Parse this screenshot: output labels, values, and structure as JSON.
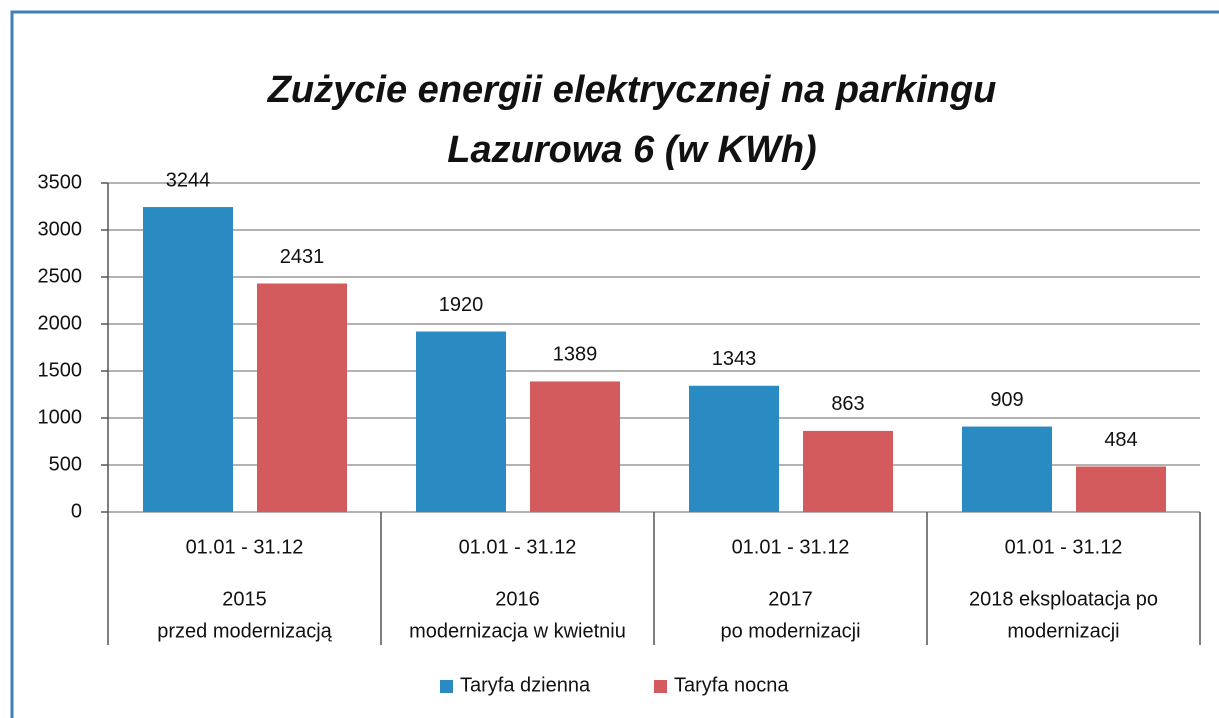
{
  "chart_data": {
    "type": "bar",
    "title": [
      "Zużycie energii elektrycznej na parkingu",
      "Lazurowa 6 (w KWh)"
    ],
    "categories": [
      [
        "01.01 - 31.12",
        "2015",
        "przed modernizacją"
      ],
      [
        "01.01 - 31.12",
        "2016",
        "modernizacja w kwietniu"
      ],
      [
        "01.01 - 31.12",
        "2017",
        "po modernizacji"
      ],
      [
        "01.01 - 31.12",
        "2018 eksploatacja po",
        "modernizacji"
      ]
    ],
    "series": [
      {
        "name": "Taryfa dzienna",
        "color": "#2a8ac2",
        "values": [
          3244,
          1920,
          1343,
          909
        ]
      },
      {
        "name": "Taryfa nocna",
        "color": "#d35b5e",
        "values": [
          2431,
          1389,
          863,
          484
        ]
      }
    ],
    "ylim": [
      0,
      3500
    ],
    "yticks": [
      0,
      500,
      1000,
      1500,
      2000,
      2500,
      3000,
      3500
    ],
    "grid": true,
    "legend": "bottom"
  }
}
